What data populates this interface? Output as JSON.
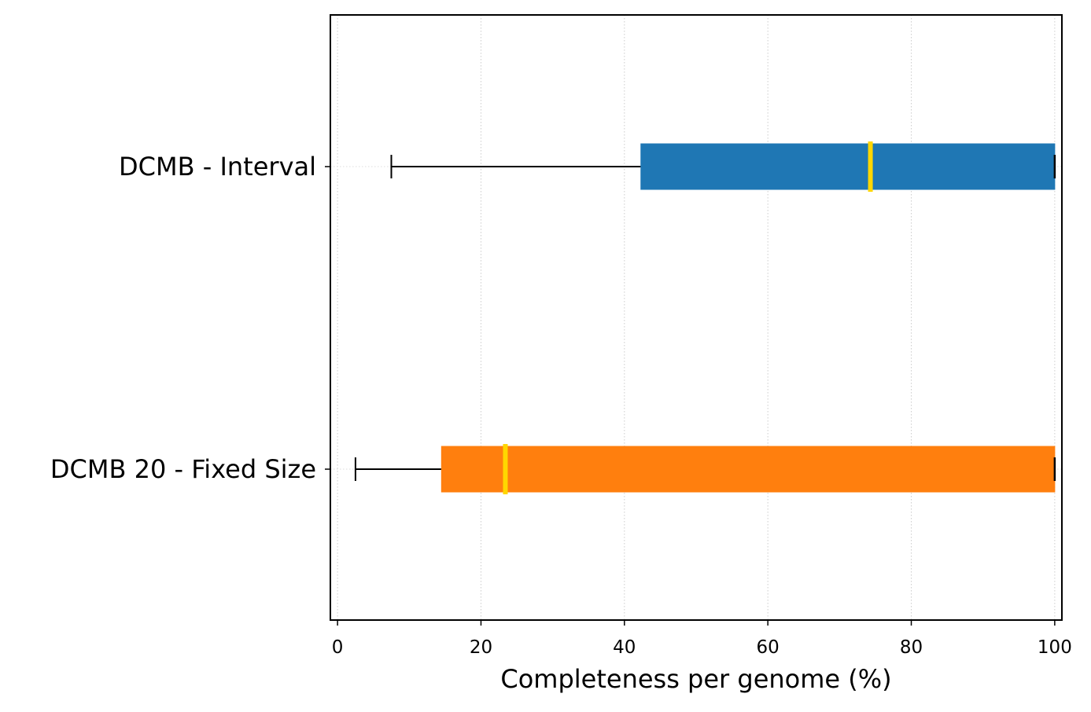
{
  "chart_data": {
    "type": "boxplot",
    "orientation": "horizontal",
    "xlabel": "Completeness per genome (%)",
    "ylabel": "",
    "title": "",
    "xlim": [
      -1,
      101
    ],
    "xticks": [
      0,
      20,
      40,
      60,
      80,
      100
    ],
    "xtick_labels": [
      "0",
      "20",
      "40",
      "60",
      "80",
      "100"
    ],
    "grid": "vertical dotted",
    "series": [
      {
        "name": "DCMB - Interval",
        "whisker_low": 7.5,
        "q1": 42.3,
        "median": 74.3,
        "q3": 100,
        "whisker_high": 100,
        "color": "#1f77b4"
      },
      {
        "name": "DCMB 20 - Fixed Size",
        "whisker_low": 2.5,
        "q1": 14.5,
        "median": 23.4,
        "q3": 100,
        "whisker_high": 100,
        "color": "#ff7f0e"
      }
    ],
    "median_color": "#ffd700"
  }
}
